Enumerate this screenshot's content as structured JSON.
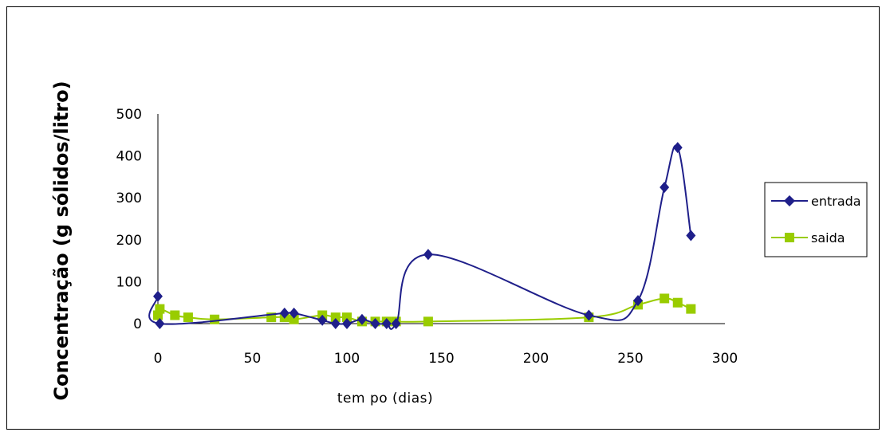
{
  "chart_data": {
    "type": "line",
    "title": "",
    "xlabel": "tem po (dias)",
    "ylabel": "Concentração (g sólidos/litro)",
    "xlim": [
      0,
      300
    ],
    "ylim": [
      0,
      500
    ],
    "x_ticks": [
      "0",
      "50",
      "100",
      "150",
      "200",
      "250",
      "300"
    ],
    "y_ticks": [
      "0",
      "100",
      "200",
      "300",
      "400",
      "500"
    ],
    "grid": false,
    "legend_position": "right",
    "series": [
      {
        "name": "entrada",
        "color": "#1f1f8a",
        "marker": "diamond",
        "x": [
          0,
          1,
          67,
          72,
          87,
          94,
          100,
          108,
          115,
          121,
          126,
          143,
          228,
          254,
          268,
          275,
          282
        ],
        "y": [
          65,
          0,
          25,
          25,
          8,
          0,
          0,
          10,
          0,
          0,
          0,
          165,
          20,
          55,
          325,
          420,
          210
        ]
      },
      {
        "name": "saida",
        "color": "#99cc00",
        "marker": "square",
        "x": [
          0,
          1,
          9,
          16,
          30,
          60,
          67,
          72,
          87,
          94,
          100,
          108,
          115,
          121,
          126,
          143,
          228,
          254,
          268,
          275,
          282
        ],
        "y": [
          20,
          35,
          20,
          15,
          10,
          15,
          15,
          10,
          20,
          15,
          15,
          5,
          5,
          5,
          5,
          5,
          15,
          45,
          60,
          50,
          35
        ]
      }
    ]
  }
}
